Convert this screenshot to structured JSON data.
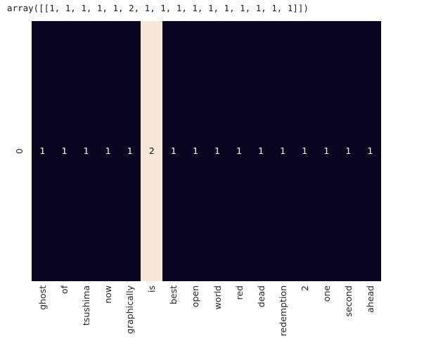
{
  "output_text": "array([[1, 1, 1, 1, 1, 2, 1, 1, 1, 1, 1, 1, 1, 1, 1, 1]])",
  "chart_data": {
    "type": "heatmap",
    "title": "",
    "xlabel": "",
    "ylabel": "",
    "categories": [
      "ghost",
      "of",
      "tsushima",
      "now",
      "graphically",
      "is",
      "best",
      "open",
      "world",
      "red",
      "dead",
      "redemption",
      "2",
      "one",
      "second",
      "ahead"
    ],
    "rows": [
      "0"
    ],
    "values": [
      [
        1,
        1,
        1,
        1,
        1,
        2,
        1,
        1,
        1,
        1,
        1,
        1,
        1,
        1,
        1,
        1
      ]
    ],
    "vmin": 1,
    "vmax": 2,
    "annotated": true,
    "legend": "none",
    "grid": false,
    "colormap": {
      "low": "#0a0622",
      "high": "#f6e8d8"
    },
    "annot_colors": {
      "on_dark": "#ffffff",
      "on_light": "#16131f"
    },
    "tick_label_color": "#262626"
  }
}
